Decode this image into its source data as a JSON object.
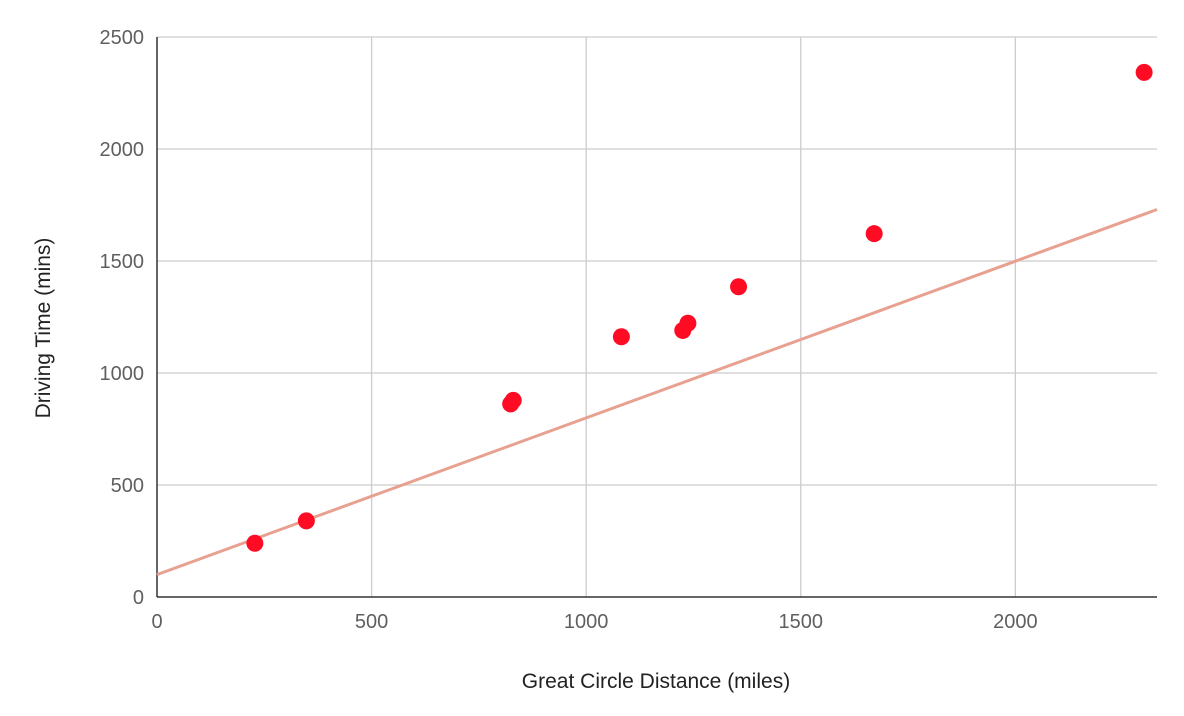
{
  "chart_data": {
    "type": "scatter",
    "title": "",
    "xlabel": "Great Circle Distance (miles)",
    "ylabel": "Driving Time (mins)",
    "xlim": [
      0,
      2330
    ],
    "ylim": [
      0,
      2500
    ],
    "x_ticks": [
      0,
      500,
      1000,
      1500,
      2000
    ],
    "y_ticks": [
      0,
      500,
      1000,
      1500,
      2000,
      2500
    ],
    "grid": true,
    "legend": "none",
    "series": [
      {
        "type": "scatter",
        "color": "#ff0b24",
        "points": [
          {
            "x": 228,
            "y": 240
          },
          {
            "x": 348,
            "y": 340
          },
          {
            "x": 824,
            "y": 862
          },
          {
            "x": 830,
            "y": 878
          },
          {
            "x": 1082,
            "y": 1162
          },
          {
            "x": 1225,
            "y": 1190
          },
          {
            "x": 1237,
            "y": 1222
          },
          {
            "x": 1355,
            "y": 1385
          },
          {
            "x": 1671,
            "y": 1622
          },
          {
            "x": 2300,
            "y": 2342
          }
        ]
      },
      {
        "type": "line",
        "role": "trendline",
        "color": "#e8a090",
        "x": [
          0,
          2330
        ],
        "y": [
          100,
          1730
        ]
      }
    ]
  }
}
